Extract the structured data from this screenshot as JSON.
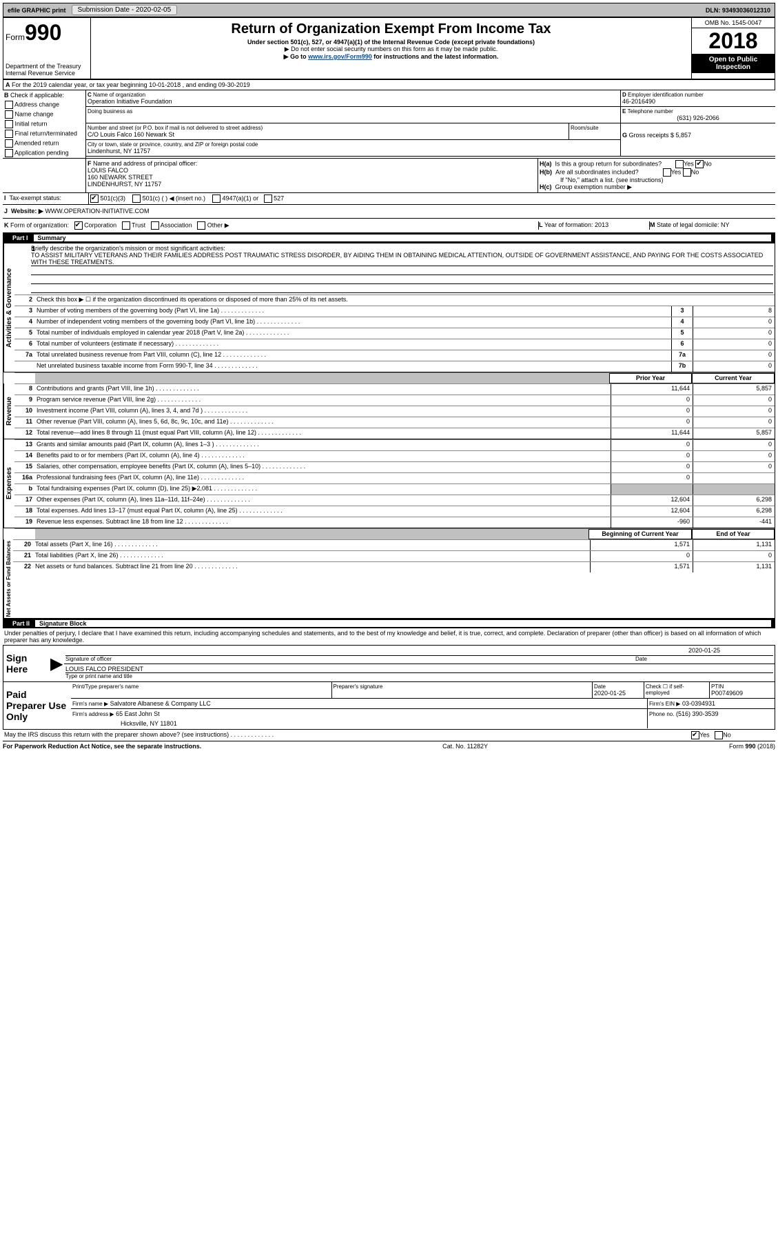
{
  "top_bar": {
    "efile": "efile GRAPHIC print",
    "submission_label": "Submission Date - 2020-02-05",
    "dln": "DLN: 93493036012310"
  },
  "header": {
    "form_word": "Form",
    "form_num": "990",
    "dept": "Department of the Treasury",
    "irs": "Internal Revenue Service",
    "title": "Return of Organization Exempt From Income Tax",
    "subtitle": "Under section 501(c), 527, or 4947(a)(1) of the Internal Revenue Code (except private foundations)",
    "note1": "▶ Do not enter social security numbers on this form as it may be made public.",
    "note2_pre": "▶ Go to ",
    "note2_link": "www.irs.gov/Form990",
    "note2_post": " for instructions and the latest information.",
    "omb": "OMB No. 1545-0047",
    "year": "2018",
    "inspect": "Open to Public Inspection"
  },
  "lineA": "For the 2019 calendar year, or tax year beginning 10-01-2018    , and ending 09-30-2019",
  "blockB": {
    "label": "Check if applicable:",
    "opts": [
      "Address change",
      "Name change",
      "Initial return",
      "Final return/terminated",
      "Amended return",
      "Application pending"
    ]
  },
  "blockC": {
    "label": "Name of organization",
    "value": "Operation Initiative Foundation",
    "dba_label": "Doing business as",
    "addr_label": "Number and street (or P.O. box if mail is not delivered to street address)",
    "room_label": "Room/suite",
    "addr": "C/O Louis Falco 160 Newark St",
    "city_label": "City or town, state or province, country, and ZIP or foreign postal code",
    "city": "Lindenhurst, NY  11757"
  },
  "blockD": {
    "label": "Employer identification number",
    "value": "46-2016490"
  },
  "blockE": {
    "label": "Telephone number",
    "value": "(631) 926-2066"
  },
  "blockG": {
    "label": "Gross receipts $ 5,857"
  },
  "blockF": {
    "label": "Name and address of principal officer:",
    "name": "LOUIS FALCO",
    "addr1": "160 NEWARK STREET",
    "addr2": "LINDENHURST, NY  11757"
  },
  "blockH": {
    "a": "Is this a group return for subordinates?",
    "b": "Are all subordinates included?",
    "bnote": "If \"No,\" attach a list. (see instructions)",
    "c": "Group exemption number ▶"
  },
  "blockI": {
    "label": "Tax-exempt status:",
    "opts": [
      "501(c)(3)",
      "501(c) (   ) ◀ (insert no.)",
      "4947(a)(1) or",
      "527"
    ]
  },
  "blockJ": {
    "label": "Website: ▶",
    "value": "WWW.OPERATION-INITIATIVE.COM"
  },
  "blockK": {
    "label": "Form of organization:",
    "opts": [
      "Corporation",
      "Trust",
      "Association",
      "Other ▶"
    ]
  },
  "blockL": {
    "label": "Year of formation: 2013"
  },
  "blockM": {
    "label": "State of legal domicile: NY"
  },
  "part1": {
    "bar": "Part I",
    "title": "Summary",
    "mission_label": "Briefly describe the organization's mission or most significant activities:",
    "mission": "TO ASSIST MILITARY VETERANS AND THEIR FAMILIES ADDRESS POST TRAUMATIC STRESS DISORDER, BY AIDING THEM IN OBTAINING MEDICAL ATTENTION, OUTSIDE OF GOVERNMENT ASSISTANCE, AND PAYING FOR THE COSTS ASSOCIATED WITH THESE TREATMENTS.",
    "line2": "Check this box ▶ ☐ if the organization discontinued its operations or disposed of more than 25% of its net assets.",
    "rows_gov": [
      {
        "n": "3",
        "d": "Number of voting members of the governing body (Part VI, line 1a)",
        "b": "3",
        "v": "8"
      },
      {
        "n": "4",
        "d": "Number of independent voting members of the governing body (Part VI, line 1b)",
        "b": "4",
        "v": "0"
      },
      {
        "n": "5",
        "d": "Total number of individuals employed in calendar year 2018 (Part V, line 2a)",
        "b": "5",
        "v": "0"
      },
      {
        "n": "6",
        "d": "Total number of volunteers (estimate if necessary)",
        "b": "6",
        "v": "0"
      },
      {
        "n": "7a",
        "d": "Total unrelated business revenue from Part VIII, column (C), line 12",
        "b": "7a",
        "v": "0"
      },
      {
        "n": "",
        "d": "Net unrelated business taxable income from Form 990-T, line 34",
        "b": "7b",
        "v": "0"
      }
    ],
    "col_prior": "Prior Year",
    "col_current": "Current Year",
    "rows_rev": [
      {
        "n": "8",
        "d": "Contributions and grants (Part VIII, line 1h)",
        "p": "11,644",
        "c": "5,857"
      },
      {
        "n": "9",
        "d": "Program service revenue (Part VIII, line 2g)",
        "p": "0",
        "c": "0"
      },
      {
        "n": "10",
        "d": "Investment income (Part VIII, column (A), lines 3, 4, and 7d )",
        "p": "0",
        "c": "0"
      },
      {
        "n": "11",
        "d": "Other revenue (Part VIII, column (A), lines 5, 6d, 8c, 9c, 10c, and 11e)",
        "p": "0",
        "c": "0"
      },
      {
        "n": "12",
        "d": "Total revenue—add lines 8 through 11 (must equal Part VIII, column (A), line 12)",
        "p": "11,644",
        "c": "5,857"
      }
    ],
    "rows_exp": [
      {
        "n": "13",
        "d": "Grants and similar amounts paid (Part IX, column (A), lines 1–3 )",
        "p": "0",
        "c": "0"
      },
      {
        "n": "14",
        "d": "Benefits paid to or for members (Part IX, column (A), line 4)",
        "p": "0",
        "c": "0"
      },
      {
        "n": "15",
        "d": "Salaries, other compensation, employee benefits (Part IX, column (A), lines 5–10)",
        "p": "0",
        "c": "0"
      },
      {
        "n": "16a",
        "d": "Professional fundraising fees (Part IX, column (A), line 11e)",
        "p": "0",
        "c": ""
      },
      {
        "n": "b",
        "d": "Total fundraising expenses (Part IX, column (D), line 25) ▶2,081",
        "p": "",
        "c": "",
        "shade": true
      },
      {
        "n": "17",
        "d": "Other expenses (Part IX, column (A), lines 11a–11d, 11f–24e)",
        "p": "12,604",
        "c": "6,298"
      },
      {
        "n": "18",
        "d": "Total expenses. Add lines 13–17 (must equal Part IX, column (A), line 25)",
        "p": "12,604",
        "c": "6,298"
      },
      {
        "n": "19",
        "d": "Revenue less expenses. Subtract line 18 from line 12",
        "p": "-960",
        "c": "-441"
      }
    ],
    "col_begin": "Beginning of Current Year",
    "col_end": "End of Year",
    "rows_net": [
      {
        "n": "20",
        "d": "Total assets (Part X, line 16)",
        "p": "1,571",
        "c": "1,131"
      },
      {
        "n": "21",
        "d": "Total liabilities (Part X, line 26)",
        "p": "0",
        "c": "0"
      },
      {
        "n": "22",
        "d": "Net assets or fund balances. Subtract line 21 from line 20",
        "p": "1,571",
        "c": "1,131"
      }
    ],
    "side_labels": [
      "Activities & Governance",
      "Revenue",
      "Expenses",
      "Net Assets or Fund Balances"
    ]
  },
  "part2": {
    "bar": "Part II",
    "title": "Signature Block",
    "declaration": "Under penalties of perjury, I declare that I have examined this return, including accompanying schedules and statements, and to the best of my knowledge and belief, it is true, correct, and complete. Declaration of preparer (other than officer) is based on all information of which preparer has any knowledge."
  },
  "sign": {
    "label": "Sign Here",
    "sig_label": "Signature of officer",
    "date_label": "Date",
    "date": "2020-01-25",
    "name": "LOUIS FALCO  PRESIDENT",
    "name_label": "Type or print name and title"
  },
  "paid": {
    "label": "Paid Preparer Use Only",
    "h1": "Print/Type preparer's name",
    "h2": "Preparer's signature",
    "h3": "Date",
    "date": "2020-01-25",
    "self_label": "Check ☐ if self-employed",
    "ptin_label": "PTIN",
    "ptin": "P00749609",
    "firm_label": "Firm's name    ▶",
    "firm": "Salvatore Albanese & Company LLC",
    "ein_label": "Firm's EIN ▶",
    "ein": "03-0394931",
    "addr_label": "Firm's address ▶",
    "addr1": "65 East John St",
    "addr2": "Hicksville, NY 11801",
    "phone_label": "Phone no.",
    "phone": "(516) 390-3539",
    "discuss": "May the IRS discuss this return with the preparer shown above? (see instructions)",
    "yes": "Yes",
    "no": "No"
  },
  "footer": {
    "left": "For Paperwork Reduction Act Notice, see the separate instructions.",
    "mid": "Cat. No. 11282Y",
    "right": "Form 990 (2018)"
  }
}
